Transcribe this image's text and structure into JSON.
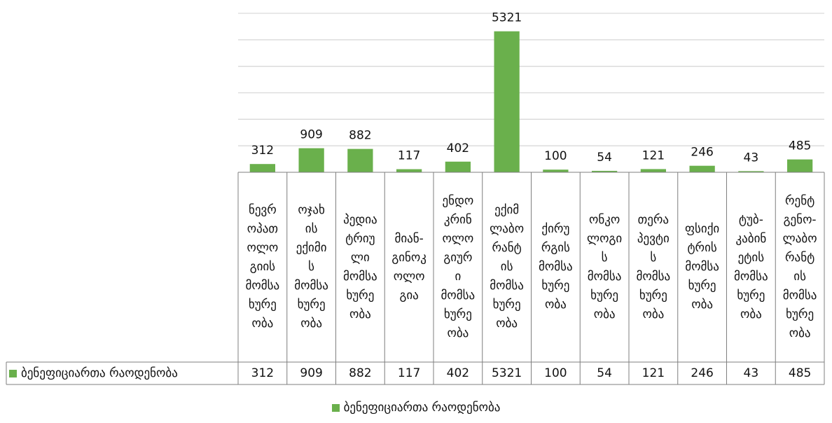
{
  "chart_data": {
    "type": "bar",
    "categories": [
      "ნევრ\nოპათ\nოლო\nგიის\nმომსა\nხურე\nობა",
      "ოჯახ\nის\nექიმი\nს\nმომსა\nხურე\nობა",
      "პედია\nტრიუ\nლი\nმომსა\nხურე\nობა",
      "მიან-\nგინოკ\nოლო\nგია",
      "ენდო\nკრინ\nოლო\nგიურ\nი\nმომსა\nხურე\nობა",
      "ექიმ\nლაბო\nრანტ\nის\nმომსა\nხურე\nობა",
      "ქირუ\nრგის\nმომსა\nხურე\nობა",
      "ონკო\nლოგი\nს\nმომსა\nხურე\nობა",
      "თერა\nპევტი\nს\nმომსა\nხურე\nობა",
      "ფსიქი\nტრის\nმომსა\nხურე\nობა",
      "ტუბ-\nკაბინ\nეტის\nმომსა\nხურე\nობა",
      "რენტ\nგენო-\nლაბო\nრანტ\nის\nმომსა\nხურე\nობა"
    ],
    "series": [
      {
        "name": "ბენეფიციართა რაოდენობა",
        "values": [
          312,
          909,
          882,
          117,
          402,
          5321,
          100,
          54,
          121,
          246,
          43,
          485
        ],
        "color": "#6ab04c"
      }
    ],
    "ylim": [
      0,
      6000
    ],
    "grid": true,
    "legend_position": "bottom",
    "data_table": true
  }
}
